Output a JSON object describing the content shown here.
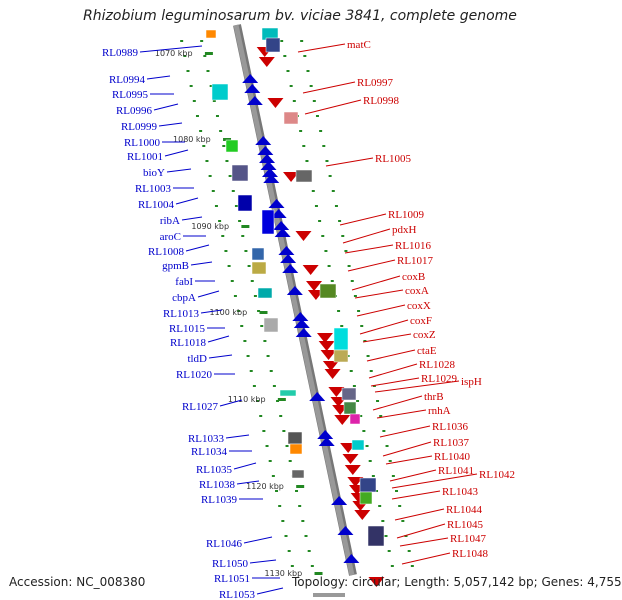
{
  "title": "Rhizobium leguminosarum bv. viciae 3841, complete genome",
  "accession": "Accession: NC_008380",
  "summary": "Topology: circular; Length: 5,057,142 bp; Genes: 4,755",
  "colors": {
    "forward": "#0000cc",
    "reverse": "#cc0000",
    "backbone": "#999999",
    "ticks": "#228822"
  },
  "scale_ticks": [
    "1070 kbp",
    "1080 kbp",
    "1090 kbp",
    "1100 kbp",
    "1110 kbp",
    "1120 kbp",
    "1130 kbp"
  ],
  "forward_strand_labels": [
    "RL0989",
    "RL0994",
    "RL0995",
    "RL0996",
    "RL0999",
    "RL1000",
    "RL1001",
    "bioY",
    "RL1003",
    "RL1004",
    "ribA",
    "aroC",
    "RL1008",
    "gpmB",
    "fabI",
    "cbpA",
    "RL1013",
    "RL1015",
    "RL1018",
    "tldD",
    "RL1020",
    "RL1027",
    "RL1033",
    "RL1034",
    "RL1035",
    "RL1038",
    "RL1039",
    "RL1046",
    "RL1050",
    "RL1051",
    "RL1053"
  ],
  "reverse_strand_labels": [
    "matC",
    "RL0997",
    "RL0998",
    "RL1005",
    "RL1009",
    "pdxH",
    "RL1016",
    "RL1017",
    "coxB",
    "coxA",
    "coxX",
    "coxF",
    "coxZ",
    "ctaE",
    "RL1028",
    "RL1029",
    "ispH",
    "thrB",
    "rnhA",
    "RL1036",
    "RL1037",
    "RL1040",
    "RL1041",
    "RL1042",
    "RL1043",
    "RL1044",
    "RL1045",
    "RL1047",
    "RL1048"
  ]
}
